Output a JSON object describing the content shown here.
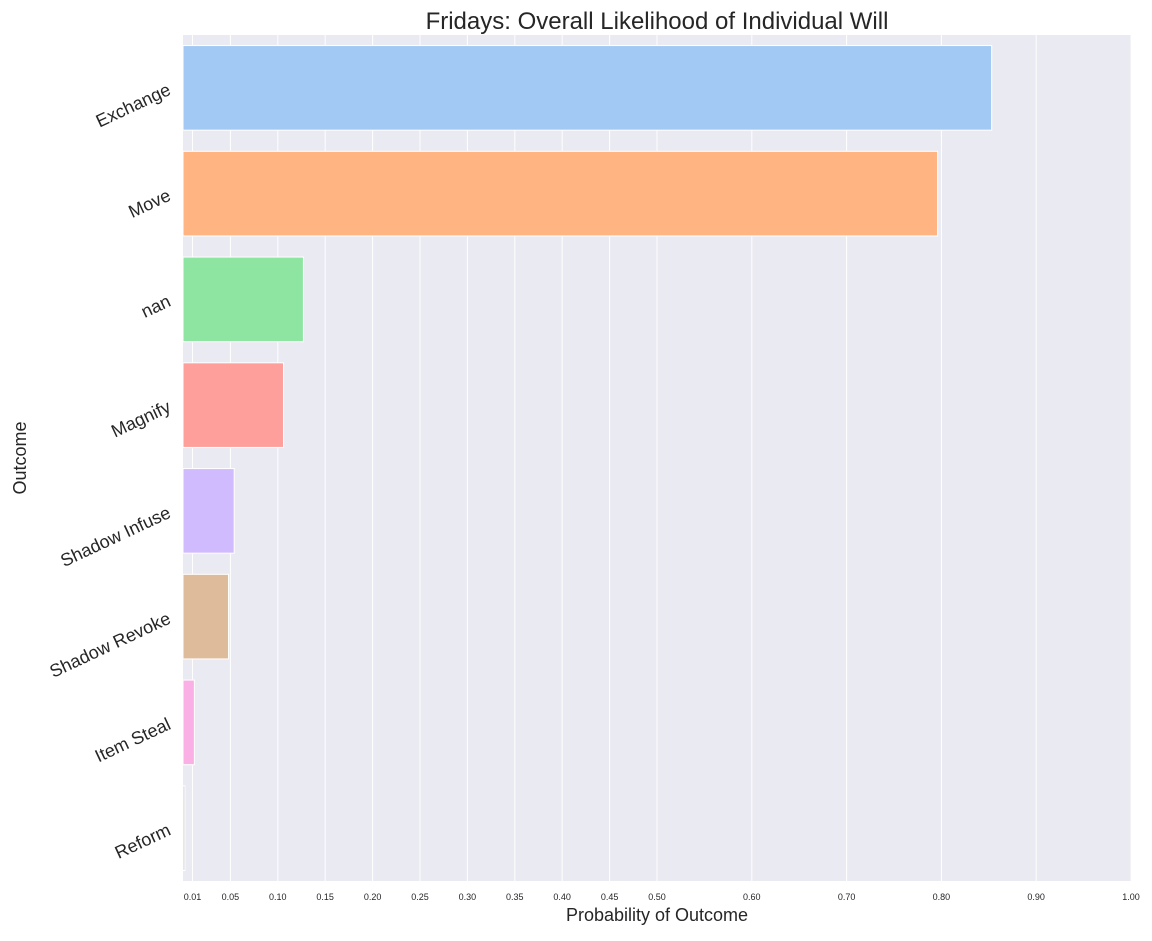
{
  "chart_data": {
    "type": "bar",
    "orientation": "horizontal",
    "title": "Fridays: Overall Likelihood of Individual Will",
    "xlabel": "Probability of Outcome",
    "ylabel": "Outcome",
    "xlim": [
      0,
      1.0
    ],
    "xticks": [
      0.01,
      0.05,
      0.1,
      0.15,
      0.2,
      0.25,
      0.3,
      0.35,
      0.4,
      0.45,
      0.5,
      0.6,
      0.7,
      0.8,
      0.9,
      1.0
    ],
    "xtick_labels": [
      "0.01",
      "0.05",
      "0.10",
      "0.15",
      "0.20",
      "0.25",
      "0.30",
      "0.35",
      "0.40",
      "0.45",
      "0.50",
      "0.60",
      "0.70",
      "0.80",
      "0.90",
      "1.00"
    ],
    "categories": [
      "Exchange",
      "Move",
      "nan",
      "Magnify",
      "Shadow Infuse",
      "Shadow Revoke",
      "Item Steal",
      "Reform"
    ],
    "values": [
      0.853,
      0.796,
      0.127,
      0.106,
      0.054,
      0.048,
      0.012,
      0.002
    ],
    "colors": [
      "#a1c9f4",
      "#ffb482",
      "#8de5a1",
      "#ff9f9b",
      "#d0bbff",
      "#debb9b",
      "#fab0e4",
      "#cfcfcf"
    ],
    "grid": true,
    "background": "#eaeaf2"
  }
}
